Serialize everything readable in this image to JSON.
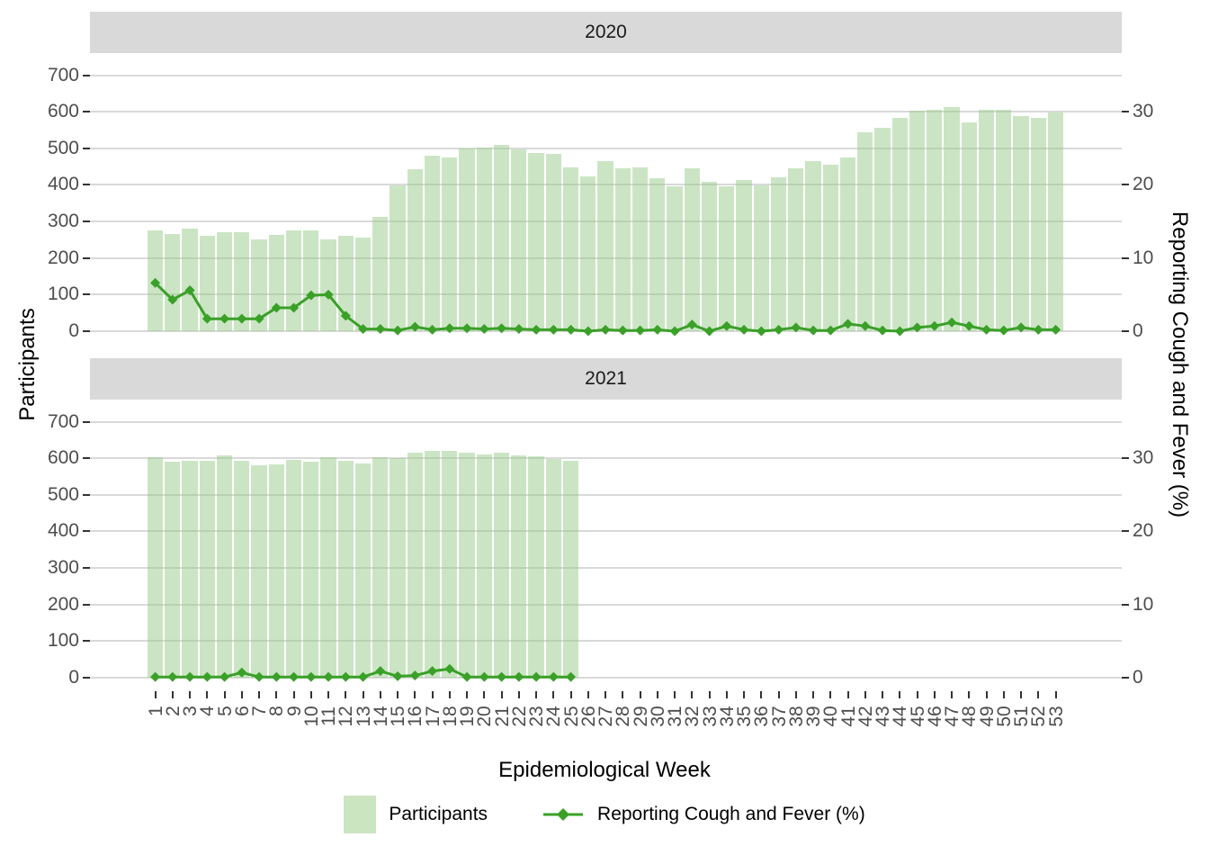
{
  "facets": [
    {
      "label": "2020"
    },
    {
      "label": "2021"
    }
  ],
  "axes": {
    "left_title": "Participants",
    "right_title": "Reporting Cough and Fever (%)",
    "x_title": "Epidemiological Week",
    "left_ticks": [
      "0",
      "100",
      "200",
      "300",
      "400",
      "500",
      "600",
      "700"
    ],
    "right_ticks": [
      "0",
      "10",
      "20",
      "30"
    ],
    "x_ticks": [
      "1",
      "2",
      "3",
      "4",
      "5",
      "6",
      "7",
      "8",
      "9",
      "10",
      "11",
      "12",
      "13",
      "14",
      "15",
      "16",
      "17",
      "18",
      "19",
      "20",
      "21",
      "22",
      "23",
      "24",
      "25",
      "26",
      "27",
      "28",
      "29",
      "30",
      "31",
      "32",
      "33",
      "34",
      "35",
      "36",
      "37",
      "38",
      "39",
      "40",
      "41",
      "42",
      "43",
      "44",
      "45",
      "46",
      "47",
      "48",
      "49",
      "50",
      "51",
      "52",
      "53"
    ]
  },
  "legend": {
    "fill_label": "Participants",
    "line_label": "Reporting Cough and Fever (%)"
  },
  "colors": {
    "bar_fill_rgba": "rgba(151,203,137,0.5)",
    "bar_solid": "#cbe5c0",
    "line": "#3aa028",
    "grid": "#d9d9d9",
    "strip_bg": "#d9d9d9",
    "axis_text": "#4d4d4d",
    "tick_mark": "#333333",
    "title_text": "#000000"
  },
  "chart_data": [
    {
      "type": "bar",
      "facet": "2020",
      "x_label": "Epidemiological Week",
      "left_ylabel": "Participants",
      "right_ylabel": "Reporting Cough and Fever (%)",
      "left_ylim": [
        0,
        700
      ],
      "right_ylim": [
        0,
        35
      ],
      "right_axis_ticks": [
        0,
        10,
        20,
        30
      ],
      "participants_per_percent": 20,
      "grid": "horizontal-major",
      "legend_position": "bottom",
      "x": [
        1,
        2,
        3,
        4,
        5,
        6,
        7,
        8,
        9,
        10,
        11,
        12,
        13,
        14,
        15,
        16,
        17,
        18,
        19,
        20,
        21,
        22,
        23,
        24,
        25,
        26,
        27,
        28,
        29,
        30,
        31,
        32,
        33,
        34,
        35,
        36,
        37,
        38,
        39,
        40,
        41,
        42,
        43,
        44,
        45,
        46,
        47,
        48,
        49,
        50,
        51,
        52,
        53
      ],
      "series": [
        {
          "name": "Participants",
          "type": "bar",
          "axis": "left",
          "values": [
            275,
            266,
            281,
            260,
            271,
            271,
            252,
            263,
            275,
            275,
            250,
            262,
            256,
            312,
            399,
            443,
            481,
            476,
            499,
            501,
            510,
            497,
            487,
            484,
            449,
            423,
            465,
            445,
            448,
            418,
            396,
            445,
            408,
            395,
            413,
            399,
            421,
            445,
            464,
            456,
            475,
            544,
            557,
            584,
            602,
            606,
            613,
            572,
            606,
            606,
            589,
            582,
            599
          ]
        },
        {
          "name": "Reporting Cough and Fever (%)",
          "type": "line",
          "axis": "right",
          "values": [
            6.6,
            4.3,
            5.6,
            1.7,
            1.7,
            1.7,
            1.7,
            3.2,
            3.2,
            4.9,
            5.0,
            2.1,
            0.3,
            0.3,
            0.1,
            0.6,
            0.2,
            0.4,
            0.4,
            0.3,
            0.4,
            0.3,
            0.2,
            0.2,
            0.2,
            0.0,
            0.2,
            0.1,
            0.1,
            0.2,
            0.0,
            0.9,
            0.0,
            0.7,
            0.2,
            0.0,
            0.2,
            0.5,
            0.1,
            0.1,
            1.0,
            0.7,
            0.1,
            0.0,
            0.5,
            0.7,
            1.2,
            0.7,
            0.2,
            0.1,
            0.5,
            0.2,
            0.2
          ]
        }
      ]
    },
    {
      "type": "bar",
      "facet": "2021",
      "x_label": "Epidemiological Week",
      "left_ylabel": "Participants",
      "right_ylabel": "Reporting Cough and Fever (%)",
      "left_ylim": [
        0,
        700
      ],
      "right_ylim": [
        0,
        35
      ],
      "right_axis_ticks": [
        0,
        10,
        20,
        30
      ],
      "participants_per_percent": 20,
      "grid": "horizontal-major",
      "legend_position": "bottom",
      "x": [
        1,
        2,
        3,
        4,
        5,
        6,
        7,
        8,
        9,
        10,
        11,
        12,
        13,
        14,
        15,
        16,
        17,
        18,
        19,
        20,
        21,
        22,
        23,
        24,
        25
      ],
      "series": [
        {
          "name": "Participants",
          "type": "bar",
          "axis": "left",
          "values": [
            603,
            590,
            593,
            593,
            609,
            593,
            580,
            583,
            595,
            591,
            602,
            592,
            585,
            603,
            600,
            614,
            619,
            621,
            614,
            611,
            614,
            608,
            605,
            598,
            593
          ]
        },
        {
          "name": "Reporting Cough and Fever (%)",
          "type": "line",
          "axis": "right",
          "values": [
            0.1,
            0.1,
            0.1,
            0.1,
            0.1,
            0.7,
            0.1,
            0.1,
            0.1,
            0.1,
            0.1,
            0.1,
            0.1,
            0.9,
            0.2,
            0.3,
            0.9,
            1.2,
            0.1,
            0.1,
            0.1,
            0.1,
            0.1,
            0.1,
            0.1
          ]
        }
      ]
    }
  ]
}
